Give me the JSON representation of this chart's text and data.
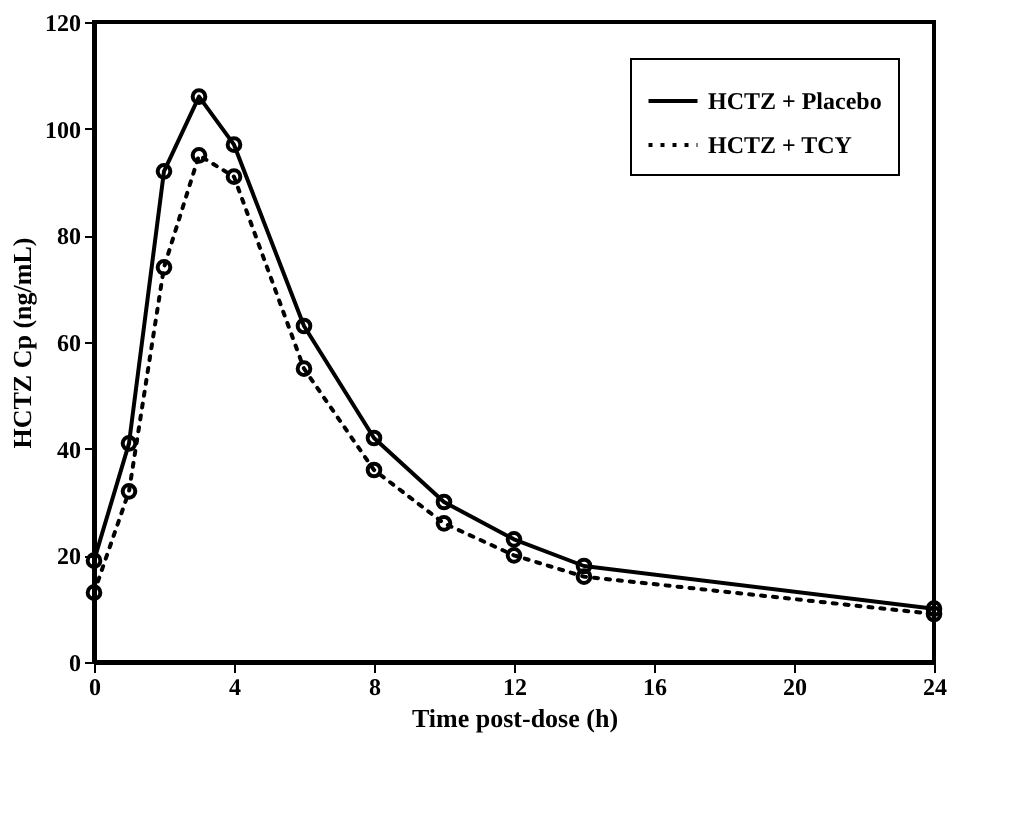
{
  "chart_data": {
    "type": "line",
    "xlabel": "Time post-dose (h)",
    "ylabel": "HCTZ Cp (ng/mL)",
    "x": [
      0,
      1,
      2,
      3,
      4,
      6,
      8,
      10,
      12,
      14,
      24
    ],
    "series": [
      {
        "name": "HCTZ + Placebo",
        "color": "#000000",
        "line_style": "solid",
        "values": [
          19,
          41,
          92,
          106,
          97,
          63,
          42,
          30,
          23,
          18,
          10
        ]
      },
      {
        "name": "HCTZ + TCY",
        "color": "#000000",
        "line_style": "dotted",
        "values": [
          13,
          32,
          74,
          95,
          91,
          55,
          36,
          26,
          20,
          16,
          9
        ]
      }
    ],
    "xlim": [
      0,
      24
    ],
    "xticks": [
      0,
      4,
      8,
      12,
      16,
      20,
      24
    ],
    "ylim": [
      0,
      120
    ],
    "yticks": [
      0,
      20,
      40,
      60,
      80,
      100,
      120
    ],
    "grid": false,
    "legend": "top right",
    "marker": "circle"
  }
}
